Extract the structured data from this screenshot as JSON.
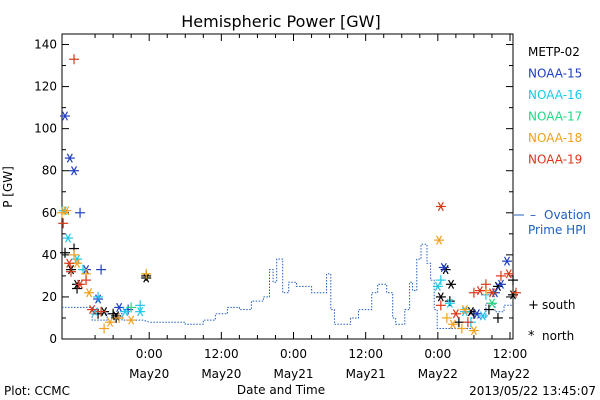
{
  "chart_data": {
    "type": "scatter",
    "title": "Hemispheric Power [GW]",
    "xlabel": "Date and Time",
    "ylabel": "P [GW]",
    "ylim": [
      0,
      145
    ],
    "xlim_hours": [
      -14.5,
      60.5
    ],
    "yticks": [
      0,
      20,
      40,
      60,
      80,
      100,
      120,
      140
    ],
    "xticks": [
      {
        "t": 0,
        "top": "0:00",
        "bottom": "May20"
      },
      {
        "t": 12,
        "top": "12:00",
        "bottom": "May20"
      },
      {
        "t": 24,
        "top": "0:00",
        "bottom": "May21"
      },
      {
        "t": 36,
        "top": "12:00",
        "bottom": "May21"
      },
      {
        "t": 48,
        "top": "0:00",
        "bottom": "May22"
      },
      {
        "t": 60,
        "top": "12:00",
        "bottom": "May22"
      }
    ],
    "legend": [
      {
        "name": "METP-02",
        "color": "#000000"
      },
      {
        "name": "NOAA-15",
        "color": "#1f3fbf"
      },
      {
        "name": "NOAA-16",
        "color": "#1cc8e8"
      },
      {
        "name": "NOAA-17",
        "color": "#22d880"
      },
      {
        "name": "NOAA-18",
        "color": "#f0a020"
      },
      {
        "name": "NOAA-19",
        "color": "#d83818"
      }
    ],
    "ovation": {
      "label1": "Ovation",
      "label2": "Prime HPI",
      "color": "#2060c0",
      "points": [
        [
          -14.5,
          15
        ],
        [
          -9.5,
          15
        ],
        [
          -9.5,
          9
        ],
        [
          -7,
          9
        ],
        [
          -7,
          12
        ],
        [
          -4.5,
          12
        ],
        [
          -4.5,
          9
        ],
        [
          -1,
          9
        ],
        [
          0,
          8
        ],
        [
          6,
          8
        ],
        [
          6,
          7
        ],
        [
          9,
          7
        ],
        [
          9,
          9
        ],
        [
          11,
          9
        ],
        [
          11,
          12
        ],
        [
          13,
          12
        ],
        [
          13,
          15
        ],
        [
          15,
          15
        ],
        [
          15,
          14
        ],
        [
          17,
          14
        ],
        [
          17,
          18
        ],
        [
          19,
          18
        ],
        [
          19,
          20
        ],
        [
          20,
          20
        ],
        [
          20,
          33
        ],
        [
          20.6,
          33
        ],
        [
          20.6,
          27
        ],
        [
          21.2,
          27
        ],
        [
          21.2,
          38
        ],
        [
          22.2,
          38
        ],
        [
          22.2,
          22
        ],
        [
          23.2,
          22
        ],
        [
          23.2,
          27
        ],
        [
          24.5,
          27
        ],
        [
          24.5,
          25
        ],
        [
          27,
          25
        ],
        [
          27,
          22
        ],
        [
          29.5,
          22
        ],
        [
          29.5,
          31
        ],
        [
          30.2,
          31
        ],
        [
          30.2,
          14
        ],
        [
          30.8,
          14
        ],
        [
          30.8,
          7
        ],
        [
          33.5,
          7
        ],
        [
          33.5,
          10
        ],
        [
          34.8,
          10
        ],
        [
          34.8,
          14
        ],
        [
          37,
          14
        ],
        [
          37,
          22
        ],
        [
          38,
          22
        ],
        [
          38,
          26
        ],
        [
          39.5,
          26
        ],
        [
          39.5,
          22
        ],
        [
          40.5,
          22
        ],
        [
          40.5,
          10
        ],
        [
          41,
          10
        ],
        [
          41,
          7
        ],
        [
          42.5,
          7
        ],
        [
          42.5,
          14
        ],
        [
          43.3,
          14
        ],
        [
          43.3,
          27
        ],
        [
          43.8,
          27
        ],
        [
          43.8,
          23
        ],
        [
          44.5,
          23
        ],
        [
          44.5,
          38
        ],
        [
          45.2,
          38
        ],
        [
          45.2,
          45
        ],
        [
          46.2,
          45
        ],
        [
          46.2,
          36
        ],
        [
          46.8,
          36
        ],
        [
          46.8,
          28
        ],
        [
          47.4,
          28
        ],
        [
          47.4,
          14
        ],
        [
          47.9,
          14
        ],
        [
          47.9,
          5
        ],
        [
          53.5,
          5
        ],
        [
          53.5,
          10
        ],
        [
          56,
          10
        ],
        [
          56,
          17
        ],
        [
          57.5,
          17
        ],
        [
          57.5,
          13
        ],
        [
          59,
          13
        ],
        [
          59,
          16
        ],
        [
          60.5,
          16
        ]
      ]
    },
    "markers": [
      {
        "label": "south",
        "symbol": "+"
      },
      {
        "label": "north",
        "symbol": "*"
      }
    ],
    "series": [
      {
        "name": "METP-02",
        "color": "#000000",
        "south": [
          [
            -14,
            41
          ],
          [
            -12.5,
            43
          ],
          [
            -12,
            24
          ],
          [
            -8.5,
            12
          ],
          [
            -6,
            12
          ],
          [
            -5.5,
            10
          ],
          [
            -0.5,
            30
          ],
          [
            50,
            18
          ],
          [
            51.5,
            8
          ],
          [
            54,
            12
          ],
          [
            56.5,
            14
          ],
          [
            58,
            10
          ],
          [
            60.5,
            28
          ]
        ],
        "north": [
          [
            -13,
            33
          ],
          [
            -12,
            26
          ],
          [
            -7.5,
            13
          ],
          [
            -5.5,
            11
          ],
          [
            -0.5,
            29
          ],
          [
            48.5,
            20
          ],
          [
            49.3,
            33
          ],
          [
            50.2,
            26
          ],
          [
            53.5,
            13
          ],
          [
            58,
            25
          ],
          [
            60.5,
            21
          ]
        ]
      },
      {
        "name": "NOAA-15",
        "color": "#1f3fbf",
        "south": [
          [
            -11.5,
            60
          ],
          [
            -8,
            33
          ],
          [
            -3.5,
            14
          ]
        ],
        "north": [
          [
            -14,
            106
          ],
          [
            -13.2,
            86
          ],
          [
            -12.5,
            80
          ],
          [
            -10.5,
            33
          ],
          [
            -8.5,
            19
          ],
          [
            -5,
            15
          ],
          [
            49,
            34
          ],
          [
            54.5,
            12
          ],
          [
            57.5,
            22
          ],
          [
            58.5,
            26
          ],
          [
            59.5,
            37
          ]
        ]
      },
      {
        "name": "NOAA-16",
        "color": "#1cc8e8",
        "south": [
          [
            -11,
            33
          ],
          [
            -8.5,
            20
          ],
          [
            -1.5,
            16
          ],
          [
            48.5,
            28
          ],
          [
            53.5,
            8
          ],
          [
            56,
            21
          ]
        ],
        "north": [
          [
            -14.2,
            61
          ],
          [
            -13.5,
            48
          ],
          [
            -12,
            38
          ],
          [
            -9,
            13
          ],
          [
            -4,
            13
          ],
          [
            -1.5,
            13
          ],
          [
            48,
            25
          ],
          [
            50,
            17
          ],
          [
            52.5,
            13
          ],
          [
            55.5,
            11
          ]
        ]
      },
      {
        "name": "NOAA-17",
        "color": "#22d880",
        "south": [
          [
            -3,
            15
          ]
        ],
        "north": [
          [
            57,
            17
          ]
        ]
      },
      {
        "name": "NOAA-18",
        "color": "#f0a020",
        "south": [
          [
            -14.5,
            60
          ],
          [
            -12.5,
            40
          ],
          [
            -10.5,
            31
          ],
          [
            -7.5,
            5
          ],
          [
            -5,
            10
          ],
          [
            -0.5,
            31
          ],
          [
            49.5,
            10
          ],
          [
            52,
            5
          ],
          [
            56,
            23
          ]
        ],
        "north": [
          [
            -13.8,
            61
          ],
          [
            -12,
            36
          ],
          [
            -10,
            22
          ],
          [
            -6.5,
            8
          ],
          [
            -3,
            9
          ],
          [
            48.2,
            47
          ],
          [
            50.5,
            7
          ],
          [
            52.5,
            14
          ],
          [
            54,
            4
          ]
        ]
      },
      {
        "name": "NOAA-19",
        "color": "#d83818",
        "south": [
          [
            -14.3,
            55
          ],
          [
            -13,
            32
          ],
          [
            -12.5,
            133
          ],
          [
            -10.5,
            28
          ],
          [
            -8,
            13
          ],
          [
            48.5,
            16
          ],
          [
            53,
            8
          ],
          [
            54,
            22
          ],
          [
            56,
            26
          ],
          [
            58.5,
            30
          ],
          [
            61,
            22
          ]
        ],
        "north": [
          [
            -13.3,
            36
          ],
          [
            -11.5,
            26
          ],
          [
            -9.5,
            14
          ],
          [
            48.5,
            63
          ],
          [
            51,
            12
          ],
          [
            55,
            23
          ],
          [
            57,
            22
          ],
          [
            59.8,
            31
          ]
        ]
      }
    ]
  },
  "footer": {
    "plot_source": "Plot: CCMC",
    "timestamp": "2013/05/22  13:45:07"
  }
}
